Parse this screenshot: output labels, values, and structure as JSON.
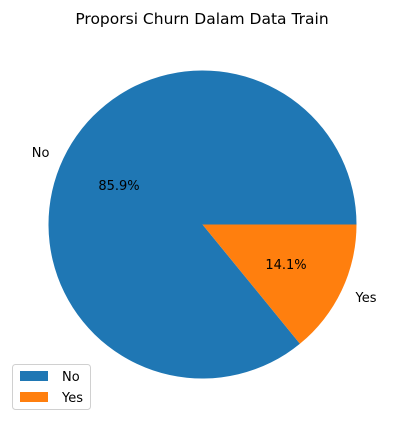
{
  "chart_data": {
    "type": "pie",
    "title": "Proporsi Churn Dalam Data Train",
    "categories": [
      "No",
      "Yes"
    ],
    "values": [
      85.9,
      14.1
    ],
    "percent_labels": [
      "85.9%",
      "14.1%"
    ],
    "colors": [
      "#1f77b4",
      "#ff7f0e"
    ],
    "start_angle_deg": 0,
    "direction": "counterclockwise",
    "legend": {
      "placement": "lower-left",
      "entries": [
        "No",
        "Yes"
      ]
    }
  }
}
